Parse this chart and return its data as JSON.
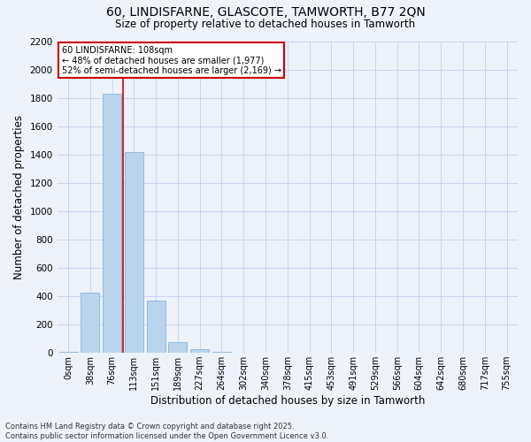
{
  "title_line1": "60, LINDISFARNE, GLASCOTE, TAMWORTH, B77 2QN",
  "title_line2": "Size of property relative to detached houses in Tamworth",
  "xlabel": "Distribution of detached houses by size in Tamworth",
  "ylabel": "Number of detached properties",
  "bar_color": "#bad4ee",
  "bar_edge_color": "#8ab4d8",
  "background_color": "#eef2fb",
  "grid_color": "#c8d4ee",
  "annotation_box_color": "#cc0000",
  "vline_color": "#cc0000",
  "vline_x": 2.5,
  "annotation_text_line1": "60 LINDISFARNE: 108sqm",
  "annotation_text_line2": "← 48% of detached houses are smaller (1,977)",
  "annotation_text_line3": "52% of semi-detached houses are larger (2,169) →",
  "categories": [
    "0sqm",
    "38sqm",
    "76sqm",
    "113sqm",
    "151sqm",
    "189sqm",
    "227sqm",
    "264sqm",
    "302sqm",
    "340sqm",
    "378sqm",
    "415sqm",
    "453sqm",
    "491sqm",
    "529sqm",
    "566sqm",
    "604sqm",
    "642sqm",
    "680sqm",
    "717sqm",
    "755sqm"
  ],
  "values": [
    5,
    425,
    1830,
    1420,
    370,
    75,
    25,
    5,
    0,
    0,
    0,
    0,
    0,
    0,
    0,
    0,
    0,
    0,
    0,
    0,
    0
  ],
  "ylim": [
    0,
    2200
  ],
  "yticks": [
    0,
    200,
    400,
    600,
    800,
    1000,
    1200,
    1400,
    1600,
    1800,
    2000,
    2200
  ],
  "footer_line1": "Contains HM Land Registry data © Crown copyright and database right 2025.",
  "footer_line2": "Contains public sector information licensed under the Open Government Licence v3.0."
}
